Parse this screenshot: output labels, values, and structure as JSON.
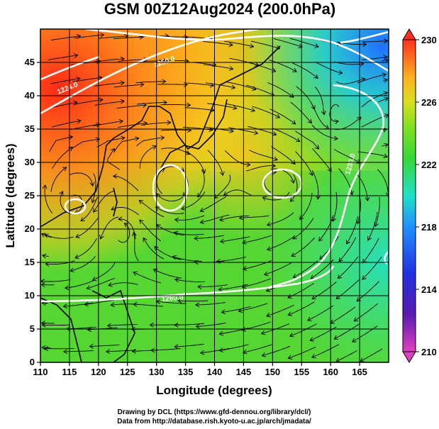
{
  "chart_data": {
    "type": "heatmap",
    "title": "GSM 00Z12Aug2024 (200.0hPa)",
    "xlabel": "Longitude (degrees)",
    "ylabel": "Latitude  (degrees)",
    "xlim": [
      110,
      170
    ],
    "ylim": [
      0,
      50
    ],
    "xticks": [
      110,
      115,
      120,
      125,
      130,
      135,
      140,
      145,
      150,
      155,
      160,
      165
    ],
    "yticks": [
      0,
      5,
      10,
      15,
      20,
      25,
      30,
      35,
      40,
      45
    ],
    "colorbar": {
      "ticks": [
        210,
        214,
        218,
        222,
        226,
        230
      ],
      "range": [
        210,
        230
      ]
    },
    "contour_labels": [
      "1224.0",
      "1230.0",
      "1260.0",
      "1250.0"
    ],
    "grid": true,
    "colors": {
      "warm": "#ff3a1a",
      "orange": "#ff9a1f",
      "yellow": "#ffd21f",
      "green": "#4fd62f",
      "cyan": "#20e0c8",
      "blue": "#2060ff",
      "contour": "#ffffff"
    }
  },
  "credits": {
    "line1": "Drawing by DCL (https://www.gfd-dennou.org/library/dcl/)",
    "line2": "Data from http://database.rish.kyoto-u.ac.jp/arch/jmadata/"
  }
}
